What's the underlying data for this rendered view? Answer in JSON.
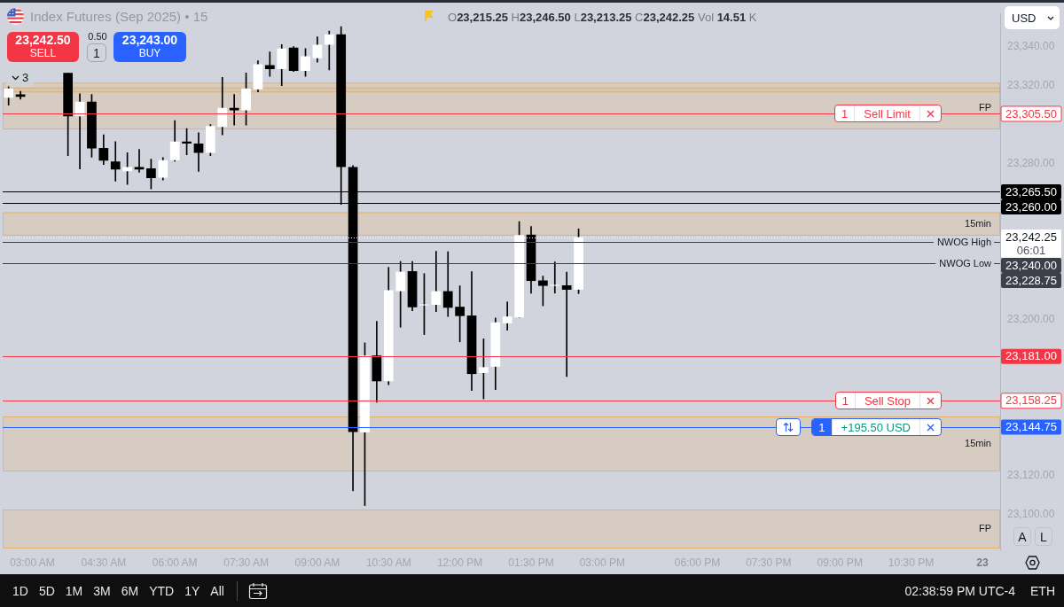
{
  "chart_data": {
    "type": "candlestick",
    "title": "Index Futures (Sep 2025) • 15",
    "subtitle": "O23,215.25 H23,246.50 L23,213.25 C23,242.25 Vol 14.51 K",
    "categories": [
      null,
      null,
      "03:00 AM",
      null,
      null,
      null,
      null,
      null,
      "04:30 AM",
      null,
      null,
      null,
      null,
      null,
      "06:00 AM",
      null,
      null,
      null,
      null,
      null,
      "07:30 AM",
      null,
      null,
      null,
      null,
      null,
      "09:00 AM",
      null,
      null,
      null,
      null,
      null,
      "10:30 AM",
      null,
      null,
      null,
      null,
      null,
      "12:00 PM",
      null,
      null,
      null,
      null,
      null,
      "01:30 PM",
      null,
      null,
      null,
      null,
      null,
      "03:00 PM",
      null,
      null,
      null,
      null,
      null,
      null,
      null,
      "06:00 PM",
      null,
      null,
      null,
      null,
      null,
      "07:30 PM",
      null,
      null,
      null,
      null,
      null,
      "09:00 PM",
      null,
      null,
      null,
      null,
      null,
      "10:30 PM",
      null,
      null,
      null,
      null,
      null,
      "23",
      null
    ],
    "ohlc": [
      [
        23313.75,
        23320,
        23310,
        23318.5
      ],
      [
        23315.5,
        23317,
        23313,
        23314.25
      ],
      null,
      null,
      null,
      [
        23326.5,
        23326.5,
        23284,
        23304.25
      ],
      [
        23304.25,
        23315.75,
        23277.25,
        23311.75
      ],
      [
        23311.75,
        23315.5,
        23283.25,
        23287.75
      ],
      [
        23288,
        23294.75,
        23279.5,
        23281.5
      ],
      [
        23281,
        23291.25,
        23271,
        23277
      ],
      [
        23276,
        23285.5,
        23269.25,
        23278.25
      ],
      [
        23278.25,
        23287.25,
        23275.5,
        23277
      ],
      [
        23277.5,
        23282.25,
        23267,
        23272.5
      ],
      [
        23272.75,
        23283,
        23271.5,
        23281.75
      ],
      [
        23281.75,
        23302,
        23281.25,
        23291.25
      ],
      [
        23291.25,
        23298,
        23284.5,
        23290.25
      ],
      [
        23290.25,
        23295.75,
        23276,
        23285.5
      ],
      [
        23285.5,
        23300,
        23284,
        23299.25
      ],
      [
        23298.75,
        23324.25,
        23294.75,
        23308.5
      ],
      [
        23308.5,
        23315.5,
        23299.75,
        23307.25
      ],
      [
        23307.25,
        23326.5,
        23299.75,
        23318.5
      ],
      [
        23318,
        23332.75,
        23316.75,
        23331
      ],
      [
        23330.5,
        23337.25,
        23324.75,
        23328.5
      ],
      [
        23328.5,
        23341,
        23320,
        23339
      ],
      [
        23339.5,
        23340,
        23327.25,
        23327.5
      ],
      [
        23327.5,
        23339,
        23324.75,
        23335
      ],
      [
        23334,
        23345,
        23332,
        23341
      ],
      [
        23341,
        23348,
        23328,
        23346.25
      ],
      [
        23346.25,
        23350.25,
        23259,
        23278.25
      ],
      [
        23278.25,
        23279,
        23112,
        23142.25
      ],
      [
        23142,
        23188,
        23104.5,
        23181.5
      ],
      [
        23181.5,
        23199,
        23157.5,
        23168.25
      ],
      [
        23168.25,
        23226.75,
        23166.5,
        23215
      ],
      [
        23214.5,
        23229.75,
        23196,
        23224.5
      ],
      [
        23224.75,
        23229.75,
        23204.5,
        23206.25
      ],
      [
        23207.25,
        23223.5,
        23192.25,
        23207.5
      ],
      [
        23207.5,
        23235,
        23204,
        23214.5
      ],
      [
        23214.5,
        23234.75,
        23201.5,
        23206
      ],
      [
        23206.5,
        23217.25,
        23188.5,
        23201.75
      ],
      [
        23202,
        23224.5,
        23163.5,
        23172
      ],
      [
        23172.5,
        23190,
        23159.25,
        23175.5
      ],
      [
        23175.75,
        23200.75,
        23164,
        23198.5
      ],
      [
        23198,
        23209,
        23194.5,
        23201.5
      ],
      [
        23201,
        23250.25,
        23201,
        23243.25
      ],
      [
        23243.5,
        23247.75,
        23213.5,
        23219.75
      ],
      [
        23220,
        23222.25,
        23207,
        23217.25
      ],
      [
        23217.25,
        23229.5,
        23213.5,
        23217.75
      ],
      [
        23217.5,
        23224.25,
        23170.75,
        23215.25
      ],
      [
        23215.25,
        23246.5,
        23213.25,
        23242.25
      ],
      null,
      null,
      null,
      null,
      null,
      null,
      null,
      null,
      null,
      null,
      null,
      null,
      null,
      null,
      null,
      null,
      null,
      null,
      null,
      null,
      null,
      null,
      null,
      null,
      null,
      null,
      null,
      null,
      null,
      null,
      null,
      null,
      null,
      null,
      null
    ],
    "colors": [
      "#ffffff",
      "#000000",
      null,
      null,
      null,
      "#000000",
      "#ffffff",
      "#000000",
      "#000000",
      "#000000",
      "#ffffff",
      "#000000",
      "#000000",
      "#ffffff",
      "#ffffff",
      "#000000",
      "#000000",
      "#ffffff",
      "#ffffff",
      "#000000",
      "#ffffff",
      "#ffffff",
      "#000000",
      "#ffffff",
      "#000000",
      "#ffffff",
      "#ffffff",
      "#ffffff",
      "#000000",
      "#000000",
      "#ffffff",
      "#000000",
      "#ffffff",
      "#ffffff",
      "#000000",
      "#ffffff",
      "#ffffff",
      "#000000",
      "#000000",
      "#000000",
      "#ffffff",
      "#ffffff",
      "#ffffff",
      "#ffffff",
      "#000000",
      "#000000",
      "#ffffff",
      "#000000",
      "#ffffff",
      null,
      null,
      null,
      null,
      null,
      null,
      null,
      null,
      null,
      null,
      null,
      null,
      null,
      null,
      null,
      null,
      null,
      null,
      null,
      null,
      null,
      null,
      null,
      null,
      null,
      null,
      null,
      null,
      null,
      null,
      null,
      null,
      null,
      null,
      null
    ],
    "ylim": [
      23082,
      23357
    ],
    "yticks": [
      {
        "value": 23100,
        "label": "23,100.00"
      },
      {
        "value": 23120,
        "label": "23,120.00"
      },
      {
        "value": 23200,
        "label": "23,200.00"
      },
      {
        "value": 23280,
        "label": "23,280.00"
      },
      {
        "value": 23320,
        "label": "23,320.00"
      },
      {
        "value": 23340,
        "label": "23,340.00"
      }
    ],
    "ref_lines": [
      {
        "axis": "y",
        "value": 23305.5,
        "label": "23,305.50",
        "color": "#f23645"
      },
      {
        "axis": "y",
        "value": 23265.5,
        "label": "23,265.50",
        "color": "#000000"
      },
      {
        "axis": "y",
        "value": 23260,
        "label": "23,260.00",
        "color": "#000000"
      },
      {
        "axis": "y",
        "value": 23242.25,
        "label": "23,242.25",
        "color": "#ffffff",
        "line_style": "dotted"
      },
      {
        "axis": "y",
        "value": 23240,
        "label": "23,240.00",
        "color": "#3d404b"
      },
      {
        "axis": "y",
        "value": 23228.75,
        "label": "23,228.75",
        "color": "#3d404b"
      },
      {
        "axis": "y",
        "value": 23181,
        "label": "23,181.00",
        "color": "#f23645"
      },
      {
        "axis": "y",
        "value": 23158.25,
        "label": "23,158.25",
        "color": "#f23645"
      },
      {
        "axis": "y",
        "value": 23144.75,
        "label": "23,144.75",
        "color": "#2962ff"
      }
    ],
    "bands": [
      {
        "axis": "y",
        "from": 23316.5,
        "to": 23321.5,
        "color": "#ff9800"
      },
      {
        "axis": "y",
        "from": 23297.5,
        "to": 23319,
        "label": "FP",
        "color": "#ff9800"
      },
      {
        "axis": "y",
        "from": 23243,
        "to": 23255,
        "label": "15min",
        "color": "#ff9800"
      },
      {
        "axis": "y",
        "from": 23122,
        "to": 23150.25,
        "label": "15min",
        "color": "#ff9800"
      },
      {
        "axis": "y",
        "from": 23082.5,
        "to": 23102.5,
        "label": "FP",
        "color": "#ff9800"
      }
    ],
    "annotations": [
      "23,242.50",
      "SELL",
      "0.50",
      "1",
      "23,243.00",
      "BUY",
      "3",
      "USD",
      "A",
      "L",
      "1D",
      "5D",
      "1M",
      "3M",
      "6M",
      "YTD",
      "1Y",
      "All",
      "02:38:59 PM UTC-4",
      "ETH",
      "06:01",
      {
        "text": "1",
        "y": 23305.5
      },
      {
        "text": "Sell Limit",
        "y": 23305.5
      },
      {
        "text": "NWOG High",
        "y": 23240
      },
      {
        "text": "NWOG Low",
        "y": 23228.75
      },
      {
        "text": "1",
        "y": 23158.25
      },
      {
        "text": "Sell Stop",
        "y": 23158.25
      },
      {
        "text": "1",
        "y": 23144.75
      },
      {
        "text": "+195.50 USD",
        "y": 23144.75
      }
    ]
  }
}
